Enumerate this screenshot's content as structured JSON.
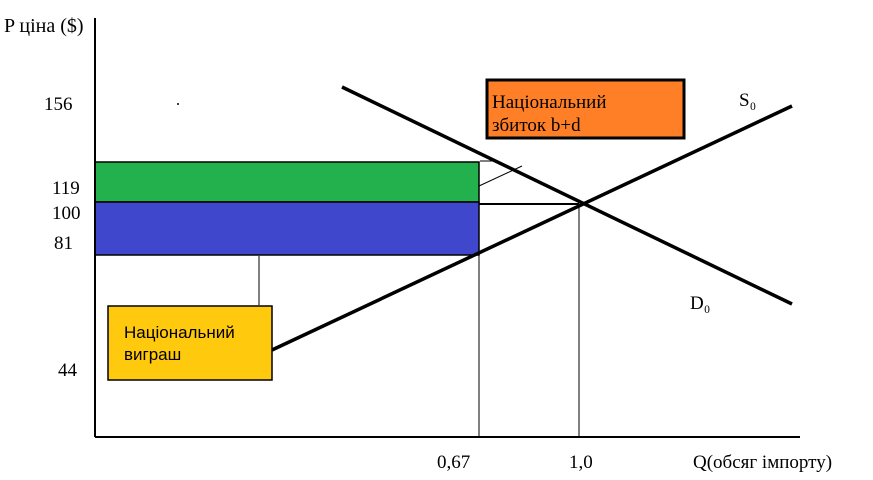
{
  "axes": {
    "y_label": "P ціна ($)",
    "x_label": "Q(обсяг імпорту)",
    "y_ticks": [
      "156",
      "119",
      "100",
      "81",
      "44"
    ],
    "x_ticks": [
      "0,67",
      "1,0"
    ]
  },
  "curves": {
    "supply_label": "S₀",
    "demand_label": "D₀"
  },
  "boxes": {
    "loss_label_line1": "Національний",
    "loss_label_line2": "збиток b+d",
    "gain_label_line1": "Національний",
    "gain_label_line2": "виграш"
  },
  "colors": {
    "green_band": "#22b14c",
    "blue_band": "#3f48cc",
    "loss_box": "#ff7f27",
    "gain_box": "#ffc90e",
    "gain_text": "#ffffff"
  }
}
